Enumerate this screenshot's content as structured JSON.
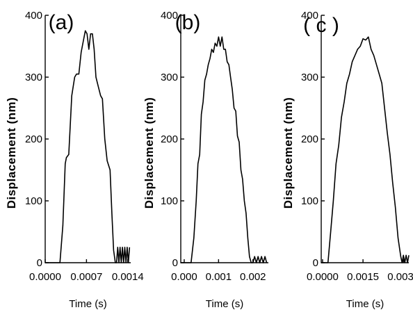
{
  "chart_data": [
    {
      "type": "line",
      "panel_label": "(a)",
      "xlabel": "Time (s)",
      "ylabel": "Displacement (nm)",
      "xlim": [
        0.0,
        0.00145
      ],
      "ylim": [
        0,
        400
      ],
      "xticks": [
        0.0,
        0.0007,
        0.0014
      ],
      "xtick_labels": [
        "0.0000",
        "0.0007",
        "0.0014"
      ],
      "yticks": [
        0,
        100,
        200,
        300,
        400
      ],
      "ytick_labels": [
        "0",
        "100",
        "200",
        "300",
        "400"
      ],
      "series": [
        {
          "x": [
            0.0,
            0.00025,
            0.0003,
            0.00034,
            0.00036,
            0.0004,
            0.00045,
            0.0005,
            0.00053,
            0.00057,
            0.00061,
            0.00065,
            0.00068,
            0.00071,
            0.00074,
            0.00077,
            0.0008,
            0.00083,
            0.00086,
            0.0009,
            0.00094,
            0.00097,
            0.00101,
            0.00105,
            0.0011,
            0.00113,
            0.00116,
            0.00119,
            0.00121,
            0.00123,
            0.00125,
            0.00127,
            0.00129,
            0.00131,
            0.00133,
            0.00135,
            0.00137,
            0.00139,
            0.00141,
            0.00143
          ],
          "y": [
            0,
            0,
            60,
            160,
            170,
            175,
            270,
            300,
            305,
            305,
            340,
            360,
            375,
            370,
            345,
            370,
            370,
            345,
            300,
            285,
            270,
            265,
            200,
            165,
            150,
            80,
            20,
            0,
            0,
            25,
            0,
            25,
            0,
            25,
            0,
            25,
            0,
            25,
            0,
            25
          ]
        }
      ]
    },
    {
      "type": "line",
      "panel_label": "(b)",
      "xlabel": "Time (s)",
      "ylabel": "Displacement (nm)",
      "xlim": [
        -0.0001,
        0.00245
      ],
      "ylim": [
        0,
        400
      ],
      "xticks": [
        0.0,
        0.001,
        0.002
      ],
      "xtick_labels": [
        "0.000",
        "0.001",
        "0.002"
      ],
      "yticks": [
        0,
        100,
        200,
        300,
        400
      ],
      "ytick_labels": [
        "0",
        "100",
        "200",
        "300",
        "400"
      ],
      "series": [
        {
          "x": [
            -0.0001,
            0.0002,
            0.00028,
            0.00035,
            0.0004,
            0.00045,
            0.0005,
            0.00055,
            0.0006,
            0.00065,
            0.0007,
            0.00075,
            0.0008,
            0.00085,
            0.0009,
            0.00095,
            0.001,
            0.00105,
            0.0011,
            0.00115,
            0.0012,
            0.00125,
            0.0013,
            0.00135,
            0.0014,
            0.00145,
            0.0015,
            0.00155,
            0.0016,
            0.00165,
            0.0017,
            0.00175,
            0.0018,
            0.00185,
            0.0019,
            0.00195,
            0.002,
            0.00205,
            0.0021,
            0.00215,
            0.0022,
            0.00225,
            0.0023,
            0.00235,
            0.0024
          ],
          "y": [
            0,
            0,
            40,
            100,
            160,
            175,
            240,
            260,
            295,
            305,
            320,
            330,
            345,
            340,
            355,
            350,
            365,
            350,
            365,
            345,
            345,
            325,
            320,
            300,
            280,
            250,
            245,
            205,
            195,
            150,
            135,
            100,
            80,
            40,
            10,
            0,
            0,
            10,
            0,
            10,
            0,
            10,
            0,
            10,
            0
          ]
        }
      ]
    },
    {
      "type": "line",
      "panel_label": "( c )",
      "xlabel": "Time (s)",
      "ylabel": "Displacement (nm)",
      "xlim": [
        -5e-05,
        0.0032
      ],
      "ylim": [
        0,
        400
      ],
      "xticks": [
        0.0,
        0.0015,
        0.003
      ],
      "xtick_labels": [
        "0.0000",
        "0.0015",
        "0.0030"
      ],
      "yticks": [
        0,
        100,
        200,
        300,
        400
      ],
      "ytick_labels": [
        "0",
        "100",
        "200",
        "300",
        "400"
      ],
      "series": [
        {
          "x": [
            -5e-05,
            0.0002,
            0.0003,
            0.0004,
            0.0005,
            0.0006,
            0.0007,
            0.0008,
            0.0009,
            0.001,
            0.0011,
            0.0012,
            0.0013,
            0.0014,
            0.0015,
            0.0016,
            0.0017,
            0.0018,
            0.0019,
            0.002,
            0.0021,
            0.0022,
            0.0023,
            0.0024,
            0.0025,
            0.0026,
            0.0027,
            0.0028,
            0.0029,
            0.00295,
            0.003,
            0.00305,
            0.0031,
            0.00315,
            0.0032
          ],
          "y": [
            0,
            0,
            50,
            100,
            160,
            190,
            235,
            260,
            290,
            305,
            325,
            335,
            345,
            350,
            362,
            360,
            365,
            345,
            335,
            320,
            305,
            290,
            250,
            210,
            175,
            130,
            90,
            40,
            10,
            0,
            12,
            0,
            12,
            0,
            12
          ]
        }
      ]
    }
  ]
}
